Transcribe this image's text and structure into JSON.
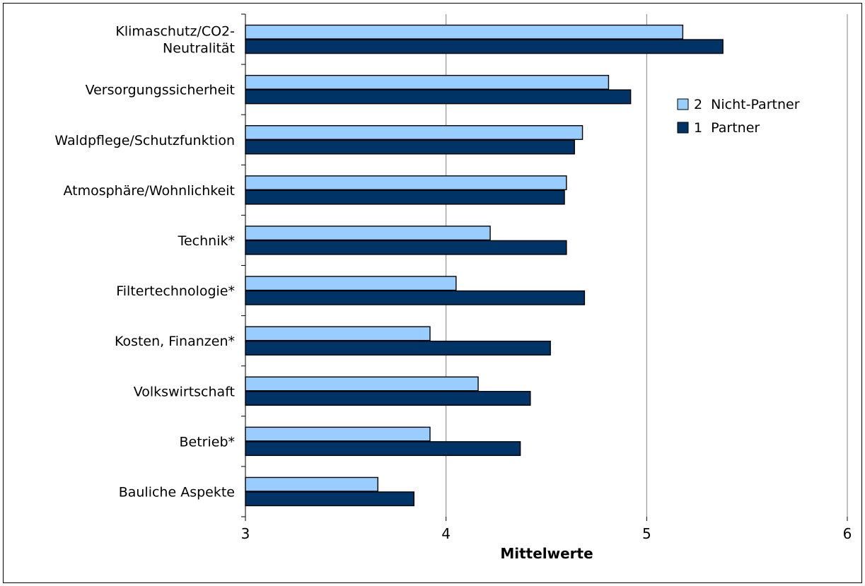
{
  "chart_data": {
    "type": "bar",
    "orientation": "horizontal",
    "title": "",
    "xlabel": "Mittelwerte",
    "ylabel": "",
    "xlim": [
      3,
      6
    ],
    "x_ticks": [
      3,
      4,
      5,
      6
    ],
    "grid": "vertical",
    "legend_position": "top-right",
    "categories": [
      [
        "Klimaschutz/CO2-",
        "Neutralität"
      ],
      [
        "Versorgungssicherheit"
      ],
      [
        "Waldpflege/Schutzfunktion"
      ],
      [
        "Atmosphäre/Wohnlichkeit"
      ],
      [
        "Technik*"
      ],
      [
        "Filtertechnologie*"
      ],
      [
        "Kosten, Finanzen*"
      ],
      [
        "Volkswirtschaft"
      ],
      [
        "Betrieb*"
      ],
      [
        "Bauliche Aspekte"
      ]
    ],
    "series": [
      {
        "name": "2  Nicht-Partner",
        "color": "#99ccff",
        "values": [
          5.18,
          4.81,
          4.68,
          4.6,
          4.22,
          4.05,
          3.92,
          4.16,
          3.92,
          3.66
        ]
      },
      {
        "name": "1  Partner",
        "color": "#003366",
        "values": [
          5.38,
          4.92,
          4.64,
          4.59,
          4.6,
          4.69,
          4.52,
          4.42,
          4.37,
          3.84
        ]
      }
    ]
  }
}
